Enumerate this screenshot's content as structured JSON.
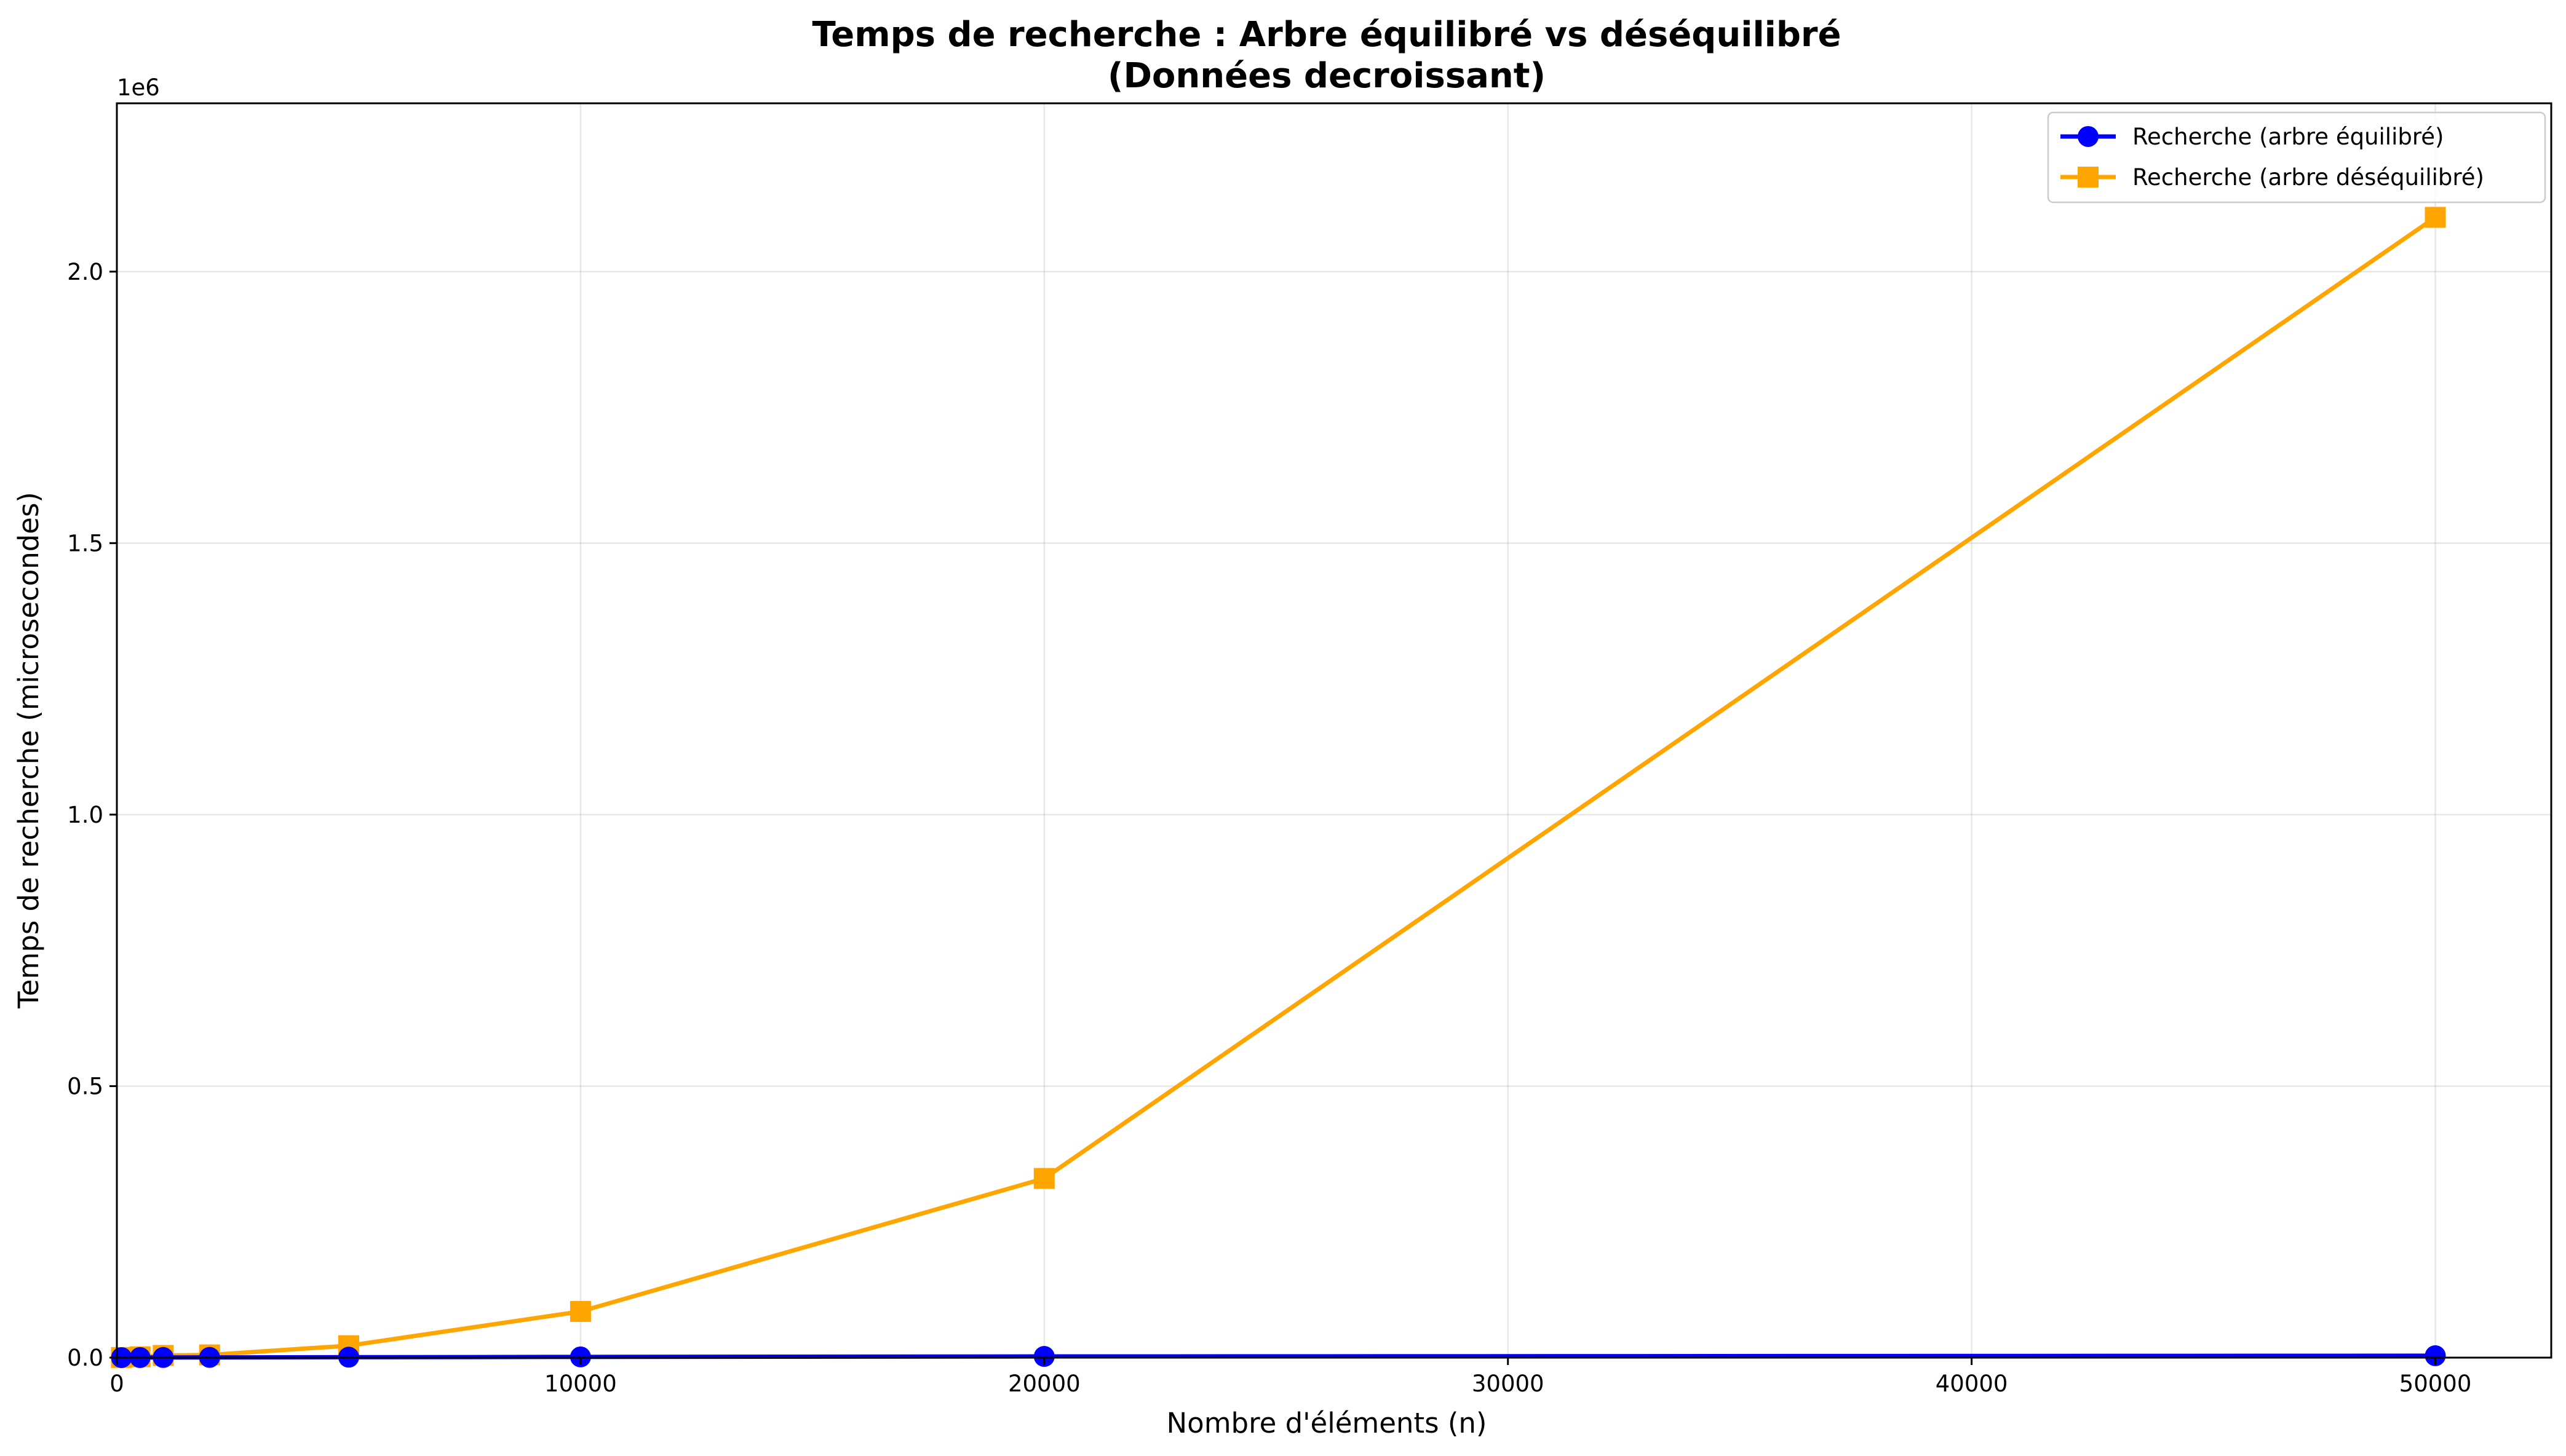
{
  "chart_data": {
    "type": "line",
    "title_lines": [
      "Temps de recherche : Arbre équilibré vs déséquilibré",
      "(Données decroissant)"
    ],
    "xlabel": "Nombre d'éléments (n)",
    "ylabel": "Temps de recherche (microsecondes)",
    "y_offset_label": "1e6",
    "xlim": [
      0,
      52500
    ],
    "ylim": [
      0,
      2310000
    ],
    "x_ticks": [
      0,
      10000,
      20000,
      30000,
      40000,
      50000
    ],
    "x_tick_labels": [
      "0",
      "10000",
      "20000",
      "30000",
      "40000",
      "50000"
    ],
    "y_ticks": [
      0,
      500000,
      1000000,
      1500000,
      2000000
    ],
    "y_tick_labels": [
      "0.0",
      "0.5",
      "1.0",
      "1.5",
      "2.0"
    ],
    "grid": true,
    "legend_position": "top-right",
    "series": [
      {
        "name": "Recherche (arbre équilibré)",
        "color": "#0000ff",
        "marker": "circle",
        "x": [
          100,
          500,
          1000,
          2000,
          5000,
          10000,
          20000,
          50000
        ],
        "y": [
          40,
          150,
          260,
          400,
          800,
          1300,
          2200,
          3500
        ]
      },
      {
        "name": "Recherche (arbre déséquilibré)",
        "color": "#ffa500",
        "marker": "square",
        "x": [
          100,
          500,
          1000,
          2000,
          5000,
          10000,
          20000,
          50000
        ],
        "y": [
          200,
          1500,
          4000,
          5000,
          22000,
          85000,
          330000,
          2100000
        ]
      }
    ]
  }
}
